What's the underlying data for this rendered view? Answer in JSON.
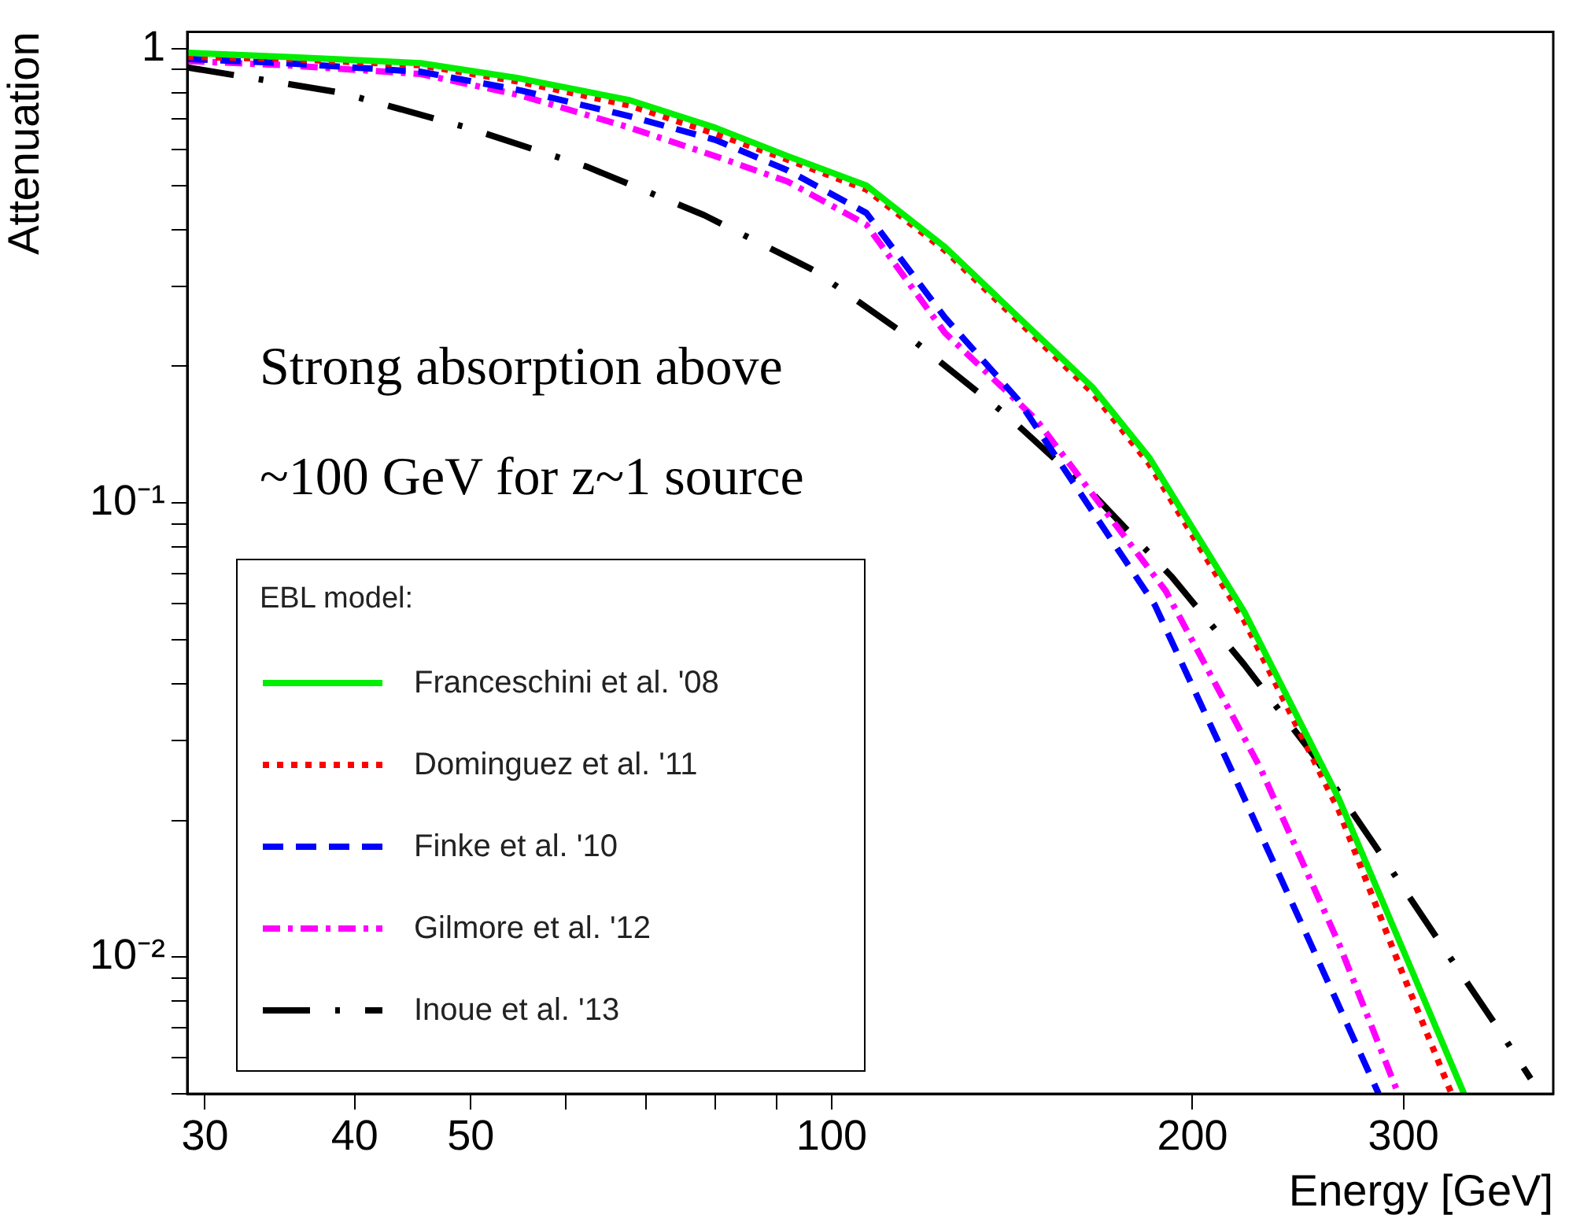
{
  "chart_data": {
    "type": "line",
    "xlabel": "Energy [GeV]",
    "ylabel": "Attenuation",
    "legend_title": "EBL model:",
    "legend": "bottom left",
    "grid": false,
    "log": "xy",
    "marker": "none",
    "xlim": [
      29,
      400
    ],
    "xticks": [
      30,
      40,
      50,
      {
        "value": 60,
        "label": null
      },
      {
        "value": 70,
        "label": null
      },
      {
        "value": 80,
        "label": null
      },
      {
        "value": 90,
        "label": null
      },
      100,
      200,
      300
    ],
    "ylim": [
      0.005,
      1.09
    ],
    "yticks": [
      {
        "value": 0.005,
        "label": null
      },
      {
        "value": 0.006,
        "label": null
      },
      {
        "value": 0.007,
        "label": null
      },
      {
        "value": 0.008,
        "label": null
      },
      {
        "value": 0.009,
        "label": null
      },
      {
        "value": 0.01,
        "label": "10⁻²"
      },
      {
        "value": 0.02,
        "label": null
      },
      {
        "value": 0.03,
        "label": null
      },
      {
        "value": 0.04,
        "label": null
      },
      {
        "value": 0.05,
        "label": null
      },
      {
        "value": 0.06,
        "label": null
      },
      {
        "value": 0.07,
        "label": null
      },
      {
        "value": 0.08,
        "label": null
      },
      {
        "value": 0.09,
        "label": null
      },
      {
        "value": 0.1,
        "label": "10⁻¹"
      },
      {
        "value": 0.2,
        "label": null
      },
      {
        "value": 0.3,
        "label": null
      },
      {
        "value": 0.4,
        "label": null
      },
      {
        "value": 0.5,
        "label": null
      },
      {
        "value": 0.6,
        "label": null
      },
      {
        "value": 0.7,
        "label": null
      },
      {
        "value": 0.8,
        "label": null
      },
      {
        "value": 0.9,
        "label": null
      },
      1
    ],
    "annotations": [
      "Strong absorption above",
      "~100 GeV for z~1 source"
    ],
    "series": [
      {
        "name": "Franceschini et al. '08",
        "color": "#00ee00",
        "line_style": "solid",
        "x": [
          29,
          35,
          45.4,
          55,
          67.9,
          80,
          91.9,
          106.9,
          124.3,
          144.6,
          165,
          184,
          221,
          265,
          302,
          337
        ],
        "values": [
          0.98,
          0.96,
          0.93,
          0.86,
          0.77,
          0.67,
          0.58,
          0.5,
          0.366,
          0.25,
          0.18,
          0.126,
          0.0575,
          0.0223,
          0.0099,
          0.005
        ]
      },
      {
        "name": "Dominguez et al. '11",
        "color": "#ff0000",
        "line_style": "dotted",
        "x": [
          29,
          35,
          45.4,
          55,
          67.9,
          80,
          91.9,
          106.9,
          124.3,
          144.6,
          165,
          184,
          221,
          265,
          299,
          329
        ],
        "values": [
          0.96,
          0.95,
          0.92,
          0.845,
          0.75,
          0.65,
          0.57,
          0.49,
          0.36,
          0.245,
          0.175,
          0.122,
          0.055,
          0.021,
          0.0093,
          0.005
        ]
      },
      {
        "name": "Finke et al. '10",
        "color": "#0000ff",
        "line_style": "dashed",
        "x": [
          29,
          35,
          45.4,
          55,
          67.9,
          80,
          91.9,
          106.9,
          124.3,
          143,
          186,
          216,
          251,
          286
        ],
        "values": [
          0.95,
          0.93,
          0.89,
          0.81,
          0.71,
          0.63,
          0.54,
          0.435,
          0.256,
          0.169,
          0.0597,
          0.0255,
          0.0107,
          0.005
        ]
      },
      {
        "name": "Gilmore et al. '12",
        "color": "#ff00ff",
        "line_style": "dashdot",
        "x": [
          29,
          35,
          45.4,
          55,
          67.9,
          80,
          91.9,
          106.9,
          124.3,
          148,
          190,
          228,
          265,
          297
        ],
        "values": [
          0.94,
          0.92,
          0.88,
          0.79,
          0.67,
          0.58,
          0.51,
          0.41,
          0.237,
          0.153,
          0.064,
          0.026,
          0.0107,
          0.005
        ]
      },
      {
        "name": "Inoue et al. '13",
        "color": "#000000",
        "line_style": "longdashdot",
        "x": [
          29,
          39,
          49.7,
          62.5,
          78.3,
          96.7,
          117,
          140,
          165,
          192,
          221,
          252,
          284,
          320,
          362,
          383
        ],
        "values": [
          0.91,
          0.8,
          0.67,
          0.55,
          0.43,
          0.325,
          0.228,
          0.156,
          0.105,
          0.069,
          0.044,
          0.028,
          0.0176,
          0.011,
          0.0068,
          0.0054
        ]
      }
    ]
  }
}
